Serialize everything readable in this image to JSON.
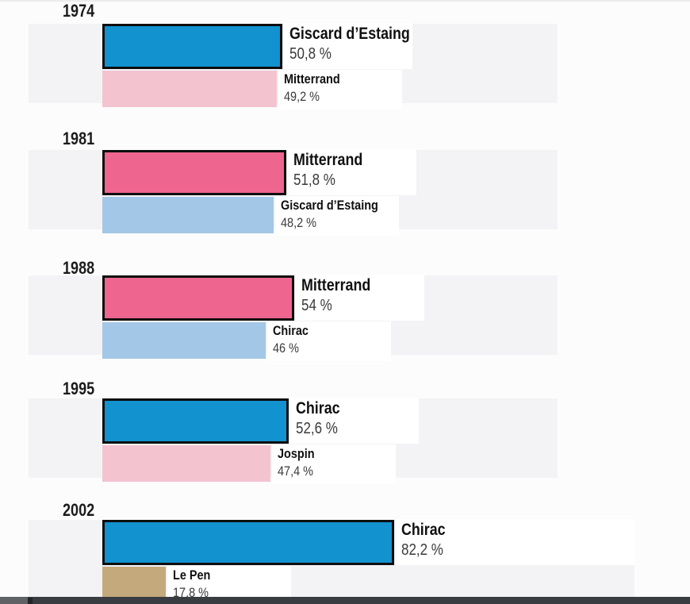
{
  "chart_data": {
    "type": "bar",
    "orientation": "horizontal",
    "title": "",
    "unit": "%",
    "categories": [
      "1974",
      "1981",
      "1988",
      "1995",
      "2002"
    ],
    "legend": "none",
    "grid": "off",
    "xlim": [
      0,
      100
    ],
    "sections": [
      {
        "year": "1974",
        "winner": {
          "name": "Giscard d’Estaing",
          "value": 50.8,
          "value_label": "50,8 %",
          "color": "#1292cf"
        },
        "runner_up": {
          "name": "Mitterrand",
          "value": 49.2,
          "value_label": "49,2 %",
          "color": "#f3c3d0"
        }
      },
      {
        "year": "1981",
        "winner": {
          "name": "Mitterrand",
          "value": 51.8,
          "value_label": "51,8 %",
          "color": "#ee6590"
        },
        "runner_up": {
          "name": "Giscard d’Estaing",
          "value": 48.2,
          "value_label": "48,2 %",
          "color": "#a3c7e6"
        }
      },
      {
        "year": "1988",
        "winner": {
          "name": "Mitterrand",
          "value": 54.0,
          "value_label": "54 %",
          "color": "#ee6590"
        },
        "runner_up": {
          "name": "Chirac",
          "value": 46.0,
          "value_label": "46 %",
          "color": "#a3c7e6"
        }
      },
      {
        "year": "1995",
        "winner": {
          "name": "Chirac",
          "value": 52.6,
          "value_label": "52,6 %",
          "color": "#1292cf"
        },
        "runner_up": {
          "name": "Jospin",
          "value": 47.4,
          "value_label": "47,4 %",
          "color": "#f3c3d0"
        }
      },
      {
        "year": "2002",
        "winner": {
          "name": "Chirac",
          "value": 82.2,
          "value_label": "82,2 %",
          "color": "#1292cf"
        },
        "runner_up": {
          "name": "Le Pen",
          "value": 17.8,
          "value_label": "17,8 %",
          "color": "#c4a97c"
        }
      }
    ],
    "colors": {
      "band_background": "#f3f3f5",
      "page_background": "#fcfcfd",
      "bar_border": "#0e0e0e",
      "label_box": "#ffffff",
      "name_text": "#101010",
      "percent_text": "#3a3a3a",
      "bottom_bar": "#393c40"
    }
  }
}
